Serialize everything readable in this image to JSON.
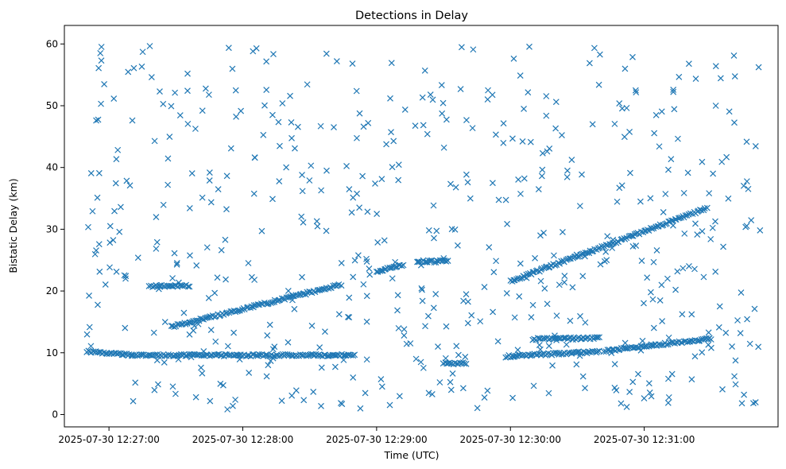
{
  "chart_data": {
    "type": "scatter",
    "title": "Detections in Delay",
    "xlabel": "Time (UTC)",
    "ylabel": "Bistatic Delay (km)",
    "x_unit": "time",
    "x_ticks": [
      "2025-07-30 12:27:00",
      "2025-07-30 12:28:00",
      "2025-07-30 12:29:00",
      "2025-07-30 12:30:00",
      "2025-07-30 12:31:00"
    ],
    "y_ticks": [
      0,
      10,
      20,
      30,
      40,
      50,
      60
    ],
    "xlim": [
      "2025-07-30 12:26:40",
      "2025-07-30 12:32:00"
    ],
    "ylim": [
      -2,
      63
    ],
    "marker": "x",
    "grid": false,
    "legend": "none",
    "colors": {
      "marker": "#1f77b4",
      "axes": "#000000",
      "background": "#ffffff"
    },
    "series": [
      {
        "tracks": [
          {
            "t": [
              "2025-07-30 12:27:18",
              "2025-07-30 12:27:36"
            ],
            "delay": [
              20.8,
              20.8
            ]
          },
          {
            "t": [
              "2025-07-30 12:27:28",
              "2025-07-30 12:28:44"
            ],
            "delay": [
              14.2,
              21.0
            ]
          },
          {
            "t": [
              "2025-07-30 12:29:00",
              "2025-07-30 12:29:12"
            ],
            "delay": [
              23.2,
              24.2
            ]
          },
          {
            "t": [
              "2025-07-30 12:29:18",
              "2025-07-30 12:29:32"
            ],
            "delay": [
              24.8,
              24.8
            ]
          },
          {
            "t": [
              "2025-07-30 12:30:00",
              "2025-07-30 12:31:28"
            ],
            "delay": [
              21.6,
              33.4
            ]
          },
          {
            "t": [
              "2025-07-30 12:26:50",
              "2025-07-30 12:27:10"
            ],
            "delay": [
              10.2,
              9.6
            ]
          },
          {
            "t": [
              "2025-07-30 12:27:10",
              "2025-07-30 12:28:50"
            ],
            "delay": [
              9.6,
              9.6
            ]
          },
          {
            "t": [
              "2025-07-30 12:29:30",
              "2025-07-30 12:29:40"
            ],
            "delay": [
              8.3,
              8.3
            ]
          },
          {
            "t": [
              "2025-07-30 12:29:58",
              "2025-07-30 12:30:40"
            ],
            "delay": [
              9.4,
              10.2
            ]
          },
          {
            "t": [
              "2025-07-30 12:30:10",
              "2025-07-30 12:30:40"
            ],
            "delay": [
              12.2,
              12.4
            ]
          },
          {
            "t": [
              "2025-07-30 12:30:42",
              "2025-07-30 12:31:30"
            ],
            "delay": [
              10.3,
              12.3
            ]
          }
        ],
        "noise": {
          "count": 560,
          "t_range": [
            "2025-07-30 12:26:50",
            "2025-07-30 12:31:52"
          ],
          "delay_range": [
            0.8,
            59.8
          ]
        }
      }
    ]
  }
}
